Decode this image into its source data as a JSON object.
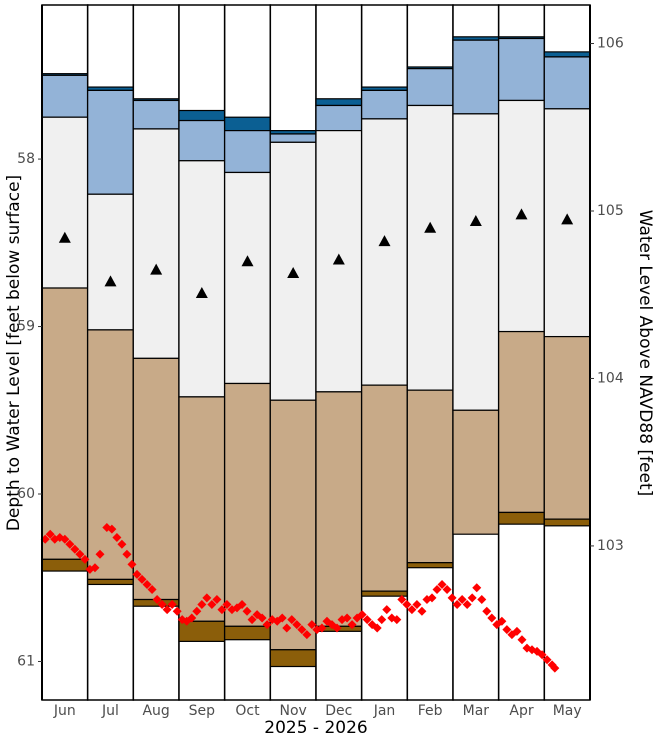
{
  "chart_data": {
    "type": "percentile-bands",
    "ylabel": "Depth to Water Level [feet below surface]",
    "y2label": "Water Level Above NAVD88  [feet]",
    "xlabel": "2025 - 2026",
    "categories": [
      "Jun",
      "Jul",
      "Aug",
      "Sep",
      "Oct",
      "Nov",
      "Dec",
      "Jan",
      "Feb",
      "Mar",
      "Apr",
      "May"
    ],
    "ylim": [
      57.08,
      61.23
    ],
    "y_inverted": true,
    "yticks": [
      58,
      59,
      60,
      61
    ],
    "y2lim": [
      106.23,
      102.08
    ],
    "y2ticks": [
      103,
      104,
      105,
      106
    ],
    "band_colors": [
      "#0b5f93",
      "#93b3d7",
      "#f0f0f0",
      "#c8aa88",
      "#8b5e0a"
    ],
    "boundaries": [
      [
        57.49,
        57.57,
        57.64,
        57.71,
        57.75,
        57.83,
        57.64,
        57.57,
        57.45,
        57.27,
        57.27,
        57.36
      ],
      [
        57.5,
        57.59,
        57.65,
        57.77,
        57.83,
        57.85,
        57.68,
        57.59,
        57.46,
        57.29,
        57.28,
        57.39
      ],
      [
        57.75,
        58.21,
        57.82,
        58.01,
        58.08,
        57.9,
        57.83,
        57.76,
        57.68,
        57.73,
        57.65,
        57.7
      ],
      [
        58.77,
        59.02,
        59.19,
        59.42,
        59.34,
        59.44,
        59.39,
        59.35,
        59.38,
        59.5,
        59.03,
        59.06
      ],
      [
        60.39,
        60.51,
        60.63,
        60.76,
        60.79,
        60.93,
        60.79,
        60.58,
        60.41,
        60.24,
        60.11,
        60.15
      ],
      [
        60.46,
        60.54,
        60.67,
        60.88,
        60.87,
        61.03,
        60.82,
        60.61,
        60.44,
        60.24,
        60.18,
        60.19
      ]
    ],
    "median": {
      "color": "#000000",
      "values": [
        58.47,
        58.73,
        58.66,
        58.8,
        58.61,
        58.68,
        58.6,
        58.49,
        58.41,
        58.37,
        58.33,
        58.36
      ]
    },
    "points": {
      "color": "#ff0000",
      "xlim": [
        0,
        12
      ],
      "x": [
        0.07,
        0.18,
        0.28,
        0.39,
        0.5,
        0.61,
        0.72,
        0.83,
        0.94,
        1.05,
        1.16,
        1.27,
        1.42,
        1.53,
        1.64,
        1.75,
        1.86,
        1.97,
        2.08,
        2.19,
        2.3,
        2.41,
        2.52,
        2.63,
        2.74,
        2.85,
        2.96,
        3.07,
        3.17,
        3.28,
        3.39,
        3.5,
        3.61,
        3.72,
        3.83,
        3.94,
        4.05,
        4.16,
        4.27,
        4.38,
        4.49,
        4.6,
        4.71,
        4.82,
        4.93,
        5.04,
        5.15,
        5.26,
        5.36,
        5.47,
        5.58,
        5.69,
        5.8,
        5.91,
        6.02,
        6.13,
        6.24,
        6.35,
        6.46,
        6.57,
        6.68,
        6.79,
        6.9,
        7.01,
        7.12,
        7.23,
        7.34,
        7.44,
        7.55,
        7.66,
        7.77,
        7.88,
        7.99,
        8.1,
        8.21,
        8.32,
        8.43,
        8.54,
        8.65,
        8.76,
        8.87,
        8.98,
        9.09,
        9.2,
        9.31,
        9.42,
        9.52,
        9.63,
        9.74,
        9.85,
        9.96,
        10.07,
        10.18,
        10.29,
        10.4,
        10.51,
        10.62,
        10.73,
        10.84,
        10.95,
        11.06,
        11.17,
        11.23
      ],
      "values": [
        60.27,
        60.24,
        60.27,
        60.26,
        60.27,
        60.3,
        60.33,
        60.36,
        60.39,
        60.45,
        60.44,
        60.36,
        60.2,
        60.21,
        60.26,
        60.3,
        60.36,
        60.42,
        60.48,
        60.51,
        60.54,
        60.57,
        60.63,
        60.66,
        60.69,
        60.66,
        60.7,
        60.75,
        60.76,
        60.74,
        60.7,
        60.66,
        60.62,
        60.66,
        60.63,
        60.69,
        60.66,
        60.69,
        60.68,
        60.66,
        60.7,
        60.75,
        60.72,
        60.74,
        60.78,
        60.75,
        60.76,
        60.74,
        60.8,
        60.75,
        60.78,
        60.81,
        60.84,
        60.78,
        60.81,
        60.8,
        60.76,
        60.78,
        60.8,
        60.75,
        60.74,
        60.78,
        60.74,
        60.72,
        60.75,
        60.78,
        60.8,
        60.75,
        60.69,
        60.74,
        60.75,
        60.63,
        60.66,
        60.69,
        60.66,
        60.7,
        60.63,
        60.62,
        60.57,
        60.54,
        60.57,
        60.62,
        60.66,
        60.63,
        60.66,
        60.62,
        60.56,
        60.63,
        60.7,
        60.74,
        60.78,
        60.76,
        60.81,
        60.84,
        60.82,
        60.87,
        60.92,
        60.93,
        60.94,
        60.96,
        60.99,
        61.02,
        61.04
      ]
    }
  }
}
